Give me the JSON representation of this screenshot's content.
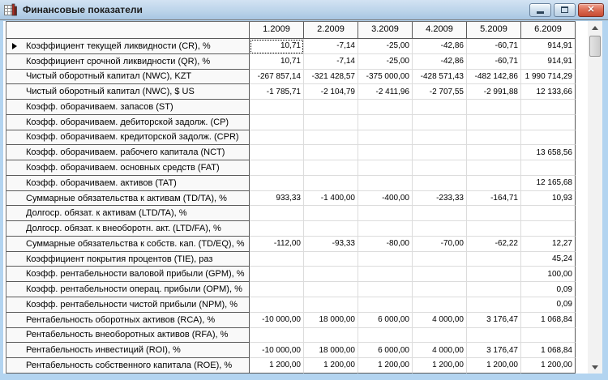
{
  "window": {
    "title": "Финансовые показатели"
  },
  "table": {
    "corner_label": "",
    "columns": [
      "1.2009",
      "2.2009",
      "3.2009",
      "4.2009",
      "5.2009",
      "6.2009"
    ],
    "focus": {
      "row": 0,
      "col": 0
    },
    "rows": [
      {
        "label": "Коэффициент текущей ликвидности (CR), %",
        "current": true,
        "values": [
          "10,71",
          "-7,14",
          "-25,00",
          "-42,86",
          "-60,71",
          "914,91"
        ]
      },
      {
        "label": "Коэффициент срочной ликвидности (QR), %",
        "current": false,
        "values": [
          "10,71",
          "-7,14",
          "-25,00",
          "-42,86",
          "-60,71",
          "914,91"
        ]
      },
      {
        "label": "Чистый оборотный капитал (NWC), KZT",
        "current": false,
        "values": [
          "-267 857,14",
          "-321 428,57",
          "-375 000,00",
          "-428 571,43",
          "-482 142,86",
          "1 990 714,29"
        ]
      },
      {
        "label": "Чистый оборотный капитал (NWC), $ US",
        "current": false,
        "values": [
          "-1 785,71",
          "-2 104,79",
          "-2 411,96",
          "-2 707,55",
          "-2 991,88",
          "12 133,66"
        ]
      },
      {
        "label": "Коэфф. оборачиваем. запасов (ST)",
        "current": false,
        "values": [
          "",
          "",
          "",
          "",
          "",
          ""
        ]
      },
      {
        "label": "Коэфф. оборачиваем. дебиторской задолж. (CP)",
        "current": false,
        "values": [
          "",
          "",
          "",
          "",
          "",
          ""
        ]
      },
      {
        "label": "Коэфф. оборачиваем. кредиторской задолж. (CPR)",
        "current": false,
        "values": [
          "",
          "",
          "",
          "",
          "",
          ""
        ]
      },
      {
        "label": "Коэфф. оборачиваем. рабочего капитала (NCT)",
        "current": false,
        "values": [
          "",
          "",
          "",
          "",
          "",
          "13 658,56"
        ]
      },
      {
        "label": "Коэфф. оборачиваем. основных средств (FAT)",
        "current": false,
        "values": [
          "",
          "",
          "",
          "",
          "",
          ""
        ]
      },
      {
        "label": "Коэфф. оборачиваем. активов (TAT)",
        "current": false,
        "values": [
          "",
          "",
          "",
          "",
          "",
          "12 165,68"
        ]
      },
      {
        "label": "Суммарные обязательства к активам (TD/TA), %",
        "current": false,
        "values": [
          "933,33",
          "-1 400,00",
          "-400,00",
          "-233,33",
          "-164,71",
          "10,93"
        ]
      },
      {
        "label": "Долгоср. обязат. к активам (LTD/TA), %",
        "current": false,
        "values": [
          "",
          "",
          "",
          "",
          "",
          ""
        ]
      },
      {
        "label": "Долгоср. обязат. к внеоборотн. акт. (LTD/FA), %",
        "current": false,
        "values": [
          "",
          "",
          "",
          "",
          "",
          ""
        ]
      },
      {
        "label": "Суммарные обязательства к собств. кап. (TD/EQ), %",
        "current": false,
        "values": [
          "-112,00",
          "-93,33",
          "-80,00",
          "-70,00",
          "-62,22",
          "12,27"
        ]
      },
      {
        "label": "Коэффициент покрытия процентов (TIE), раз",
        "current": false,
        "values": [
          "",
          "",
          "",
          "",
          "",
          "45,24"
        ]
      },
      {
        "label": "Коэфф. рентабельности валовой прибыли (GPM), %",
        "current": false,
        "values": [
          "",
          "",
          "",
          "",
          "",
          "100,00"
        ]
      },
      {
        "label": "Коэфф. рентабельности операц. прибыли (OPM), %",
        "current": false,
        "values": [
          "",
          "",
          "",
          "",
          "",
          "0,09"
        ]
      },
      {
        "label": "Коэфф. рентабельности чистой прибыли (NPM), %",
        "current": false,
        "values": [
          "",
          "",
          "",
          "",
          "",
          "0,09"
        ]
      },
      {
        "label": "Рентабельность оборотных активов (RCA), %",
        "current": false,
        "values": [
          "-10 000,00",
          "18 000,00",
          "6 000,00",
          "4 000,00",
          "3 176,47",
          "1 068,84"
        ]
      },
      {
        "label": "Рентабельность внеоборотных активов (RFA), %",
        "current": false,
        "values": [
          "",
          "",
          "",
          "",
          "",
          ""
        ]
      },
      {
        "label": "Рентабельность инвестиций (ROI), %",
        "current": false,
        "values": [
          "-10 000,00",
          "18 000,00",
          "6 000,00",
          "4 000,00",
          "3 176,47",
          "1 068,84"
        ]
      },
      {
        "label": "Рентабельность собственного капитала (ROE), %",
        "current": false,
        "values": [
          "1 200,00",
          "1 200,00",
          "1 200,00",
          "1 200,00",
          "1 200,00",
          "1 200,00"
        ]
      }
    ]
  },
  "colors": {
    "titlebar_top": "#d3e3f3",
    "titlebar_bottom": "#a8c6e2",
    "window_border": "#b3d4f0",
    "close_button": "#c64b33",
    "grid_line_dark": "#5a5a5a",
    "grid_line_light": "#dcdcdc",
    "header_bg": "#fafafa"
  }
}
